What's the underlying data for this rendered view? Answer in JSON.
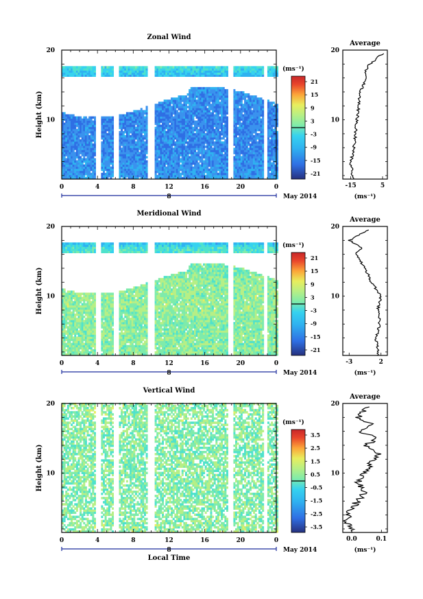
{
  "panels": [
    {
      "title": "Zonal Wind",
      "ylabel": "Height (km)",
      "yticks": [
        "20",
        "10"
      ],
      "xticks": [
        "0",
        "4",
        "8",
        "12",
        "16",
        "20",
        "0"
      ],
      "date_tick": "8",
      "month_label": "May 2014",
      "unit": "(ms⁻¹)",
      "cbar_ticks": [
        "21",
        "15",
        "9",
        "3",
        "-3",
        "-9",
        "-15",
        "-21"
      ],
      "avg_title": "Average",
      "avg_xticks": [
        "-15",
        "5"
      ],
      "avg_yticks": [
        "20",
        "10"
      ],
      "avg_unit": "(ms⁻¹)"
    },
    {
      "title": "Meridional Wind",
      "ylabel": "Height (km)",
      "yticks": [
        "20",
        "10"
      ],
      "xticks": [
        "0",
        "4",
        "8",
        "12",
        "16",
        "20",
        "0"
      ],
      "date_tick": "8",
      "month_label": "May 2014",
      "unit": "(ms⁻¹)",
      "cbar_ticks": [
        "21",
        "15",
        "9",
        "3",
        "-3",
        "-9",
        "-15",
        "-21"
      ],
      "avg_title": "Average",
      "avg_xticks": [
        "-3",
        "2"
      ],
      "avg_yticks": [
        "20",
        "10"
      ],
      "avg_unit": "(ms⁻¹)"
    },
    {
      "title": "Vertical Wind",
      "ylabel": "Height (km)",
      "yticks": [
        "20",
        "10"
      ],
      "xticks": [
        "0",
        "4",
        "8",
        "12",
        "16",
        "20",
        "0"
      ],
      "date_tick": "8",
      "month_label": "May 2014",
      "unit": "(ms⁻¹)",
      "cbar_ticks": [
        "3.5",
        "2.5",
        "1.5",
        "0.5",
        "-0.5",
        "-1.5",
        "-2.5",
        "-3.5"
      ],
      "avg_title": "Average",
      "avg_xticks": [
        "0.0",
        "0.1"
      ],
      "avg_yticks": [
        "20",
        "10"
      ],
      "avg_unit": "(ms⁻¹)",
      "xlabel": "Local Time"
    }
  ],
  "colors": {
    "colormap": [
      "#26317f",
      "#2e4fc6",
      "#2f6fe4",
      "#3a92ee",
      "#2fb2f0",
      "#36d2ef",
      "#4fe2cc",
      "#7eebab",
      "#b6ef86",
      "#e8ee5e",
      "#fbd443",
      "#fca639",
      "#f6752f",
      "#e9452b",
      "#c8272a"
    ]
  },
  "chart_data": [
    {
      "type": "heatmap",
      "title": "Zonal Wind",
      "ylabel": "Height (km)",
      "xlim": [
        0,
        24
      ],
      "ylim": [
        1.5,
        20
      ],
      "vlim": [
        -24,
        24
      ],
      "gaps_hours": [
        [
          3.8,
          4.3
        ],
        [
          5.7,
          6.4
        ],
        [
          9.4,
          10.2
        ],
        [
          18.5,
          19.0
        ],
        [
          22.4,
          22.8
        ]
      ],
      "profile": [
        [
          1.5,
          -12
        ],
        [
          4,
          -13
        ],
        [
          6,
          -14
        ],
        [
          8,
          -13.5
        ],
        [
          10,
          -14
        ],
        [
          12,
          -13
        ],
        [
          14,
          -12
        ],
        [
          16,
          -9
        ],
        [
          18,
          -3
        ],
        [
          19,
          2
        ]
      ],
      "average": {
        "title": "Average",
        "xlim": [
          -20,
          8
        ],
        "points": [
          [
            -14,
            2
          ],
          [
            -15,
            4
          ],
          [
            -13,
            6
          ],
          [
            -12,
            8
          ],
          [
            -11,
            10
          ],
          [
            -10,
            12
          ],
          [
            -9,
            14
          ],
          [
            -5,
            16
          ],
          [
            -6,
            17
          ],
          [
            -3,
            18
          ],
          [
            5,
            19.5
          ]
        ]
      }
    },
    {
      "type": "heatmap",
      "title": "Meridional Wind",
      "ylabel": "Height (km)",
      "xlim": [
        0,
        24
      ],
      "ylim": [
        1.5,
        20
      ],
      "vlim": [
        -24,
        24
      ],
      "gaps_hours": [
        [
          3.8,
          4.3
        ],
        [
          5.7,
          6.4
        ],
        [
          9.4,
          10.2
        ],
        [
          18.5,
          19.0
        ],
        [
          22.4,
          22.8
        ]
      ],
      "profile": [
        [
          1.5,
          0.5
        ],
        [
          4,
          1
        ],
        [
          6,
          0.5
        ],
        [
          8,
          1.5
        ],
        [
          10,
          1.5
        ],
        [
          12,
          1
        ],
        [
          14,
          0
        ],
        [
          16,
          -2
        ],
        [
          17,
          -5
        ],
        [
          18,
          -12
        ],
        [
          19,
          -9
        ]
      ],
      "average": {
        "title": "Average",
        "xlim": [
          -4,
          3
        ],
        "points": [
          [
            1.5,
            2
          ],
          [
            1.2,
            4
          ],
          [
            1.8,
            6
          ],
          [
            1.5,
            8
          ],
          [
            2,
            10
          ],
          [
            0.5,
            12
          ],
          [
            -0.5,
            14
          ],
          [
            -2,
            16
          ],
          [
            -1,
            17
          ],
          [
            -3,
            18
          ],
          [
            0,
            19.5
          ]
        ]
      }
    },
    {
      "type": "heatmap",
      "title": "Vertical Wind",
      "ylabel": "Height (km)",
      "xlabel": "Local Time",
      "xlim": [
        0,
        24
      ],
      "ylim": [
        1.5,
        20
      ],
      "vlim": [
        -4,
        4
      ],
      "gaps_hours": [
        [
          3.8,
          4.3
        ],
        [
          5.7,
          6.4
        ],
        [
          9.4,
          10.2
        ],
        [
          18.5,
          19.0
        ],
        [
          22.4,
          22.8
        ]
      ],
      "profile": [
        [
          1.5,
          0.2
        ],
        [
          5,
          0
        ],
        [
          10,
          0.1
        ],
        [
          15,
          0
        ],
        [
          19,
          0.2
        ]
      ],
      "average": {
        "title": "Average",
        "xlim": [
          -0.03,
          0.12
        ],
        "points": [
          [
            0.0,
            2
          ],
          [
            -0.02,
            3
          ],
          [
            0.0,
            5
          ],
          [
            0.04,
            7
          ],
          [
            0.02,
            9
          ],
          [
            0.06,
            11
          ],
          [
            0.09,
            13
          ],
          [
            0.05,
            14
          ],
          [
            0.08,
            15
          ],
          [
            0.03,
            16
          ],
          [
            0.07,
            17
          ],
          [
            0.02,
            18
          ],
          [
            0.06,
            19.5
          ]
        ]
      }
    }
  ]
}
